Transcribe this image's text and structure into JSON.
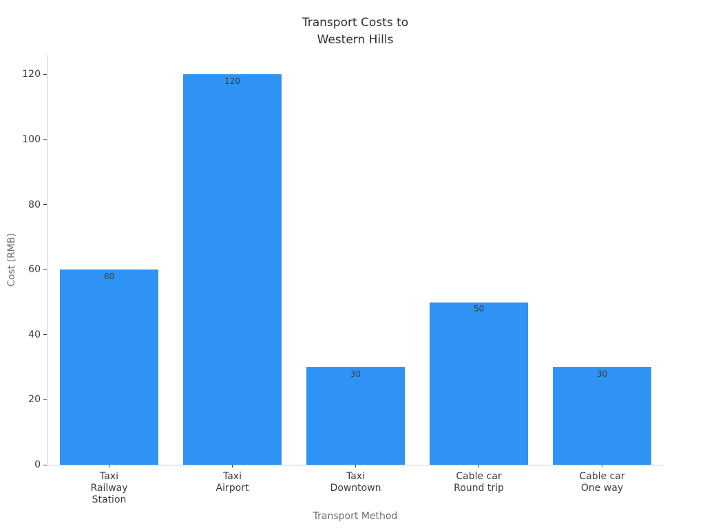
{
  "chart_data": {
    "type": "bar",
    "title": "Transport Costs to\nWestern Hills",
    "xlabel": "Transport Method",
    "ylabel": "Cost (RMB)",
    "categories": [
      "Taxi\nRailway\nStation",
      "Taxi\nAirport",
      "Taxi\nDowntown",
      "Cable car\nRound trip",
      "Cable car\nOne way"
    ],
    "values": [
      60,
      120,
      30,
      50,
      30
    ],
    "bar_value_labels": [
      "60",
      "120",
      "30",
      "50",
      "30"
    ],
    "yticks": [
      0,
      20,
      40,
      60,
      80,
      100,
      120
    ],
    "ylim": [
      0,
      126
    ],
    "grid": false,
    "legend": null,
    "colors": {
      "bar": "#2e93f5",
      "spine": "#cccccc",
      "tick_label": "#3a3a3a",
      "axis_label": "#6e6e6e",
      "title": "#2f2f2f",
      "bar_value_label": "#3a3a3a",
      "background": "#ffffff"
    }
  }
}
